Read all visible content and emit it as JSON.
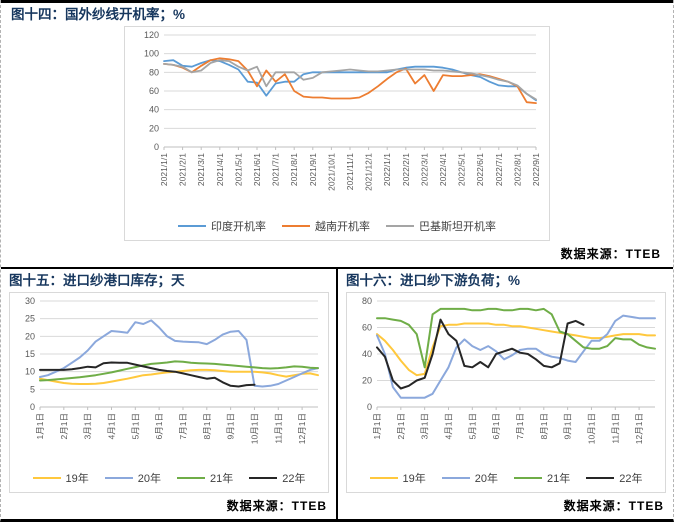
{
  "charts": [
    {
      "title": "图十四：国外纱线开机率；%",
      "source": "数据来源：TTEB",
      "chart_data": {
        "type": "line",
        "grid": true,
        "legend_position": "bottom",
        "ylim": [
          0,
          120
        ],
        "ystep": 20,
        "y_ticks": [
          0,
          20,
          40,
          60,
          80,
          100,
          120
        ],
        "x_labels": [
          "2021/1/1",
          "2021/2/1",
          "2021/3/1",
          "2021/4/1",
          "2021/5/1",
          "2021/6/1",
          "2021/7/1",
          "2021/8/1",
          "2021/9/1",
          "2021/10/1",
          "2021/11/1",
          "2021/12/1",
          "2022/1/1",
          "2022/2/1",
          "2022/3/1",
          "2022/4/1",
          "2022/5/1",
          "2022/6/1",
          "2022/7/1",
          "2022/8/1",
          "2022/9/1"
        ],
        "tick_every": 2,
        "series": [
          {
            "name": "印度开机率",
            "color": "#5B9BD5",
            "values": [
              92,
              93,
              87,
              86,
              90,
              93,
              92,
              88,
              83,
              70,
              69,
              55,
              68,
              70,
              70,
              78,
              80,
              80,
              80,
              80,
              80,
              80,
              80,
              80,
              80,
              83,
              85,
              86,
              86,
              86,
              85,
              83,
              80,
              77,
              75,
              70,
              66,
              65,
              65,
              57,
              50
            ]
          },
          {
            "name": "越南开机率",
            "color": "#ED7D31",
            "values": [
              89,
              88,
              85,
              80,
              87,
              93,
              95,
              94,
              92,
              82,
              65,
              82,
              70,
              78,
              60,
              54,
              53,
              53,
              52,
              52,
              52,
              53,
              58,
              65,
              73,
              80,
              84,
              68,
              77,
              60,
              77,
              76,
              76,
              77,
              78,
              76,
              73,
              70,
              65,
              48,
              47
            ]
          },
          {
            "name": "巴基斯坦开机率",
            "color": "#A5A5A5",
            "values": [
              89,
              88,
              86,
              80,
              82,
              90,
              93,
              92,
              86,
              82,
              86,
              65,
              80,
              80,
              80,
              72,
              74,
              80,
              81,
              82,
              83,
              82,
              81,
              81,
              82,
              83,
              83,
              83,
              83,
              82,
              82,
              81,
              80,
              79,
              77,
              75,
              72,
              70,
              66,
              57,
              51
            ]
          }
        ]
      }
    },
    {
      "title": "图十五：进口纱港口库存；天",
      "source": "数据来源：TTEB",
      "chart_data": {
        "type": "line",
        "grid": true,
        "legend_position": "bottom",
        "ylim": [
          0,
          30
        ],
        "ystep": 5,
        "y_ticks": [
          0,
          5,
          10,
          15,
          20,
          25,
          30
        ],
        "x_labels": [
          "1月1日",
          "2月1日",
          "3月1日",
          "4月1日",
          "5月1日",
          "6月1日",
          "7月1日",
          "8月1日",
          "9月1日",
          "10月1日",
          "11月1日",
          "12月1日"
        ],
        "tick_every": 3,
        "series": [
          {
            "name": "19年",
            "color": "#FFC83D",
            "values": [
              8,
              7.6,
              7.2,
              6.8,
              6.6,
              6.5,
              6.5,
              6.6,
              6.8,
              7.2,
              7.6,
              8,
              8.5,
              9,
              9.2,
              9.5,
              9.8,
              10,
              10.2,
              10.4,
              10.5,
              10.5,
              10.4,
              10.2,
              10,
              10,
              10,
              10,
              9.8,
              9.5,
              9,
              8.6,
              9,
              9.4,
              9.5,
              9
            ]
          },
          {
            "name": "20年",
            "color": "#8BA8DC",
            "values": [
              8.5,
              9,
              10,
              11,
              12.5,
              14,
              16,
              18.5,
              20,
              21.5,
              21.3,
              21,
              24,
              23.5,
              24.5,
              22.5,
              20,
              18.7,
              18.5,
              18.4,
              18.3,
              17.8,
              19,
              20.5,
              21.3,
              21.5,
              19,
              6,
              5.8,
              6,
              6.5,
              7.5,
              8.5,
              9.5,
              10.5,
              11
            ]
          },
          {
            "name": "21年",
            "color": "#6FAD47",
            "values": [
              7.5,
              7.6,
              7.8,
              8,
              8.2,
              8.4,
              8.7,
              9,
              9.4,
              9.8,
              10.3,
              10.8,
              11.3,
              11.8,
              12.2,
              12.4,
              12.6,
              12.9,
              12.8,
              12.5,
              12.4,
              12.3,
              12.2,
              12,
              11.8,
              11.6,
              11.4,
              11.2,
              11,
              10.9,
              11,
              11.2,
              11.5,
              11.4,
              11.1,
              11
            ]
          },
          {
            "name": "22年",
            "color": "#262626",
            "values": [
              10.5,
              10.5,
              10.5,
              10.5,
              10.7,
              11,
              11.4,
              11.2,
              12.4,
              12.6,
              12.5,
              12.5,
              12,
              11.5,
              11,
              10.5,
              10.2,
              10,
              9.5,
              9,
              8.5,
              8,
              8.3,
              7,
              6,
              5.8,
              6.2,
              6.3,
              null,
              null,
              null,
              null,
              null,
              null,
              null,
              null
            ]
          }
        ]
      }
    },
    {
      "title": "图十六：进口纱下游负荷；%",
      "source": "数据来源：TTEB",
      "chart_data": {
        "type": "line",
        "grid": true,
        "legend_position": "bottom",
        "ylim": [
          0,
          80
        ],
        "ystep": 20,
        "y_ticks": [
          0,
          20,
          40,
          60,
          80
        ],
        "x_labels": [
          "1月1日",
          "2月1日",
          "3月1日",
          "4月1日",
          "5月1日",
          "6月1日",
          "7月1日",
          "8月1日",
          "9月1日",
          "10月1日",
          "11月1日",
          "12月1日"
        ],
        "tick_every": 3,
        "series": [
          {
            "name": "19年",
            "color": "#FFC83D",
            "values": [
              55,
              50,
              43,
              35,
              28,
              24,
              25,
              45,
              61,
              62,
              62,
              63,
              63,
              63,
              63,
              62,
              62,
              61,
              61,
              60,
              59,
              58,
              57,
              56,
              55,
              54,
              53,
              52,
              52,
              53,
              54,
              55,
              55,
              55,
              54,
              54
            ]
          },
          {
            "name": "20年",
            "color": "#8BA8DC",
            "values": [
              54,
              40,
              15,
              7,
              7,
              7,
              7,
              10,
              20,
              30,
              45,
              51,
              46,
              43,
              46,
              42,
              36,
              39,
              43,
              44,
              44,
              40,
              38,
              37,
              35,
              34,
              42,
              50,
              50,
              55,
              65,
              69,
              68,
              67,
              67,
              67
            ]
          },
          {
            "name": "21年",
            "color": "#6FAD47",
            "values": [
              67,
              67,
              66,
              65,
              62,
              55,
              30,
              70,
              74,
              74,
              74,
              74,
              73,
              73,
              74,
              74,
              73,
              73,
              74,
              74,
              73,
              74,
              70,
              57,
              55,
              50,
              45,
              44,
              44,
              46,
              52,
              51,
              51,
              47,
              45,
              44
            ]
          },
          {
            "name": "22年",
            "color": "#262626",
            "values": [
              45,
              38,
              20,
              14,
              16,
              20,
              22,
              40,
              66,
              55,
              50,
              31,
              30,
              34,
              30,
              40,
              42,
              44,
              41,
              40,
              36,
              31,
              30,
              33,
              63,
              65,
              62,
              null,
              null,
              null,
              null,
              null,
              null,
              null,
              null,
              null
            ]
          }
        ]
      }
    }
  ]
}
